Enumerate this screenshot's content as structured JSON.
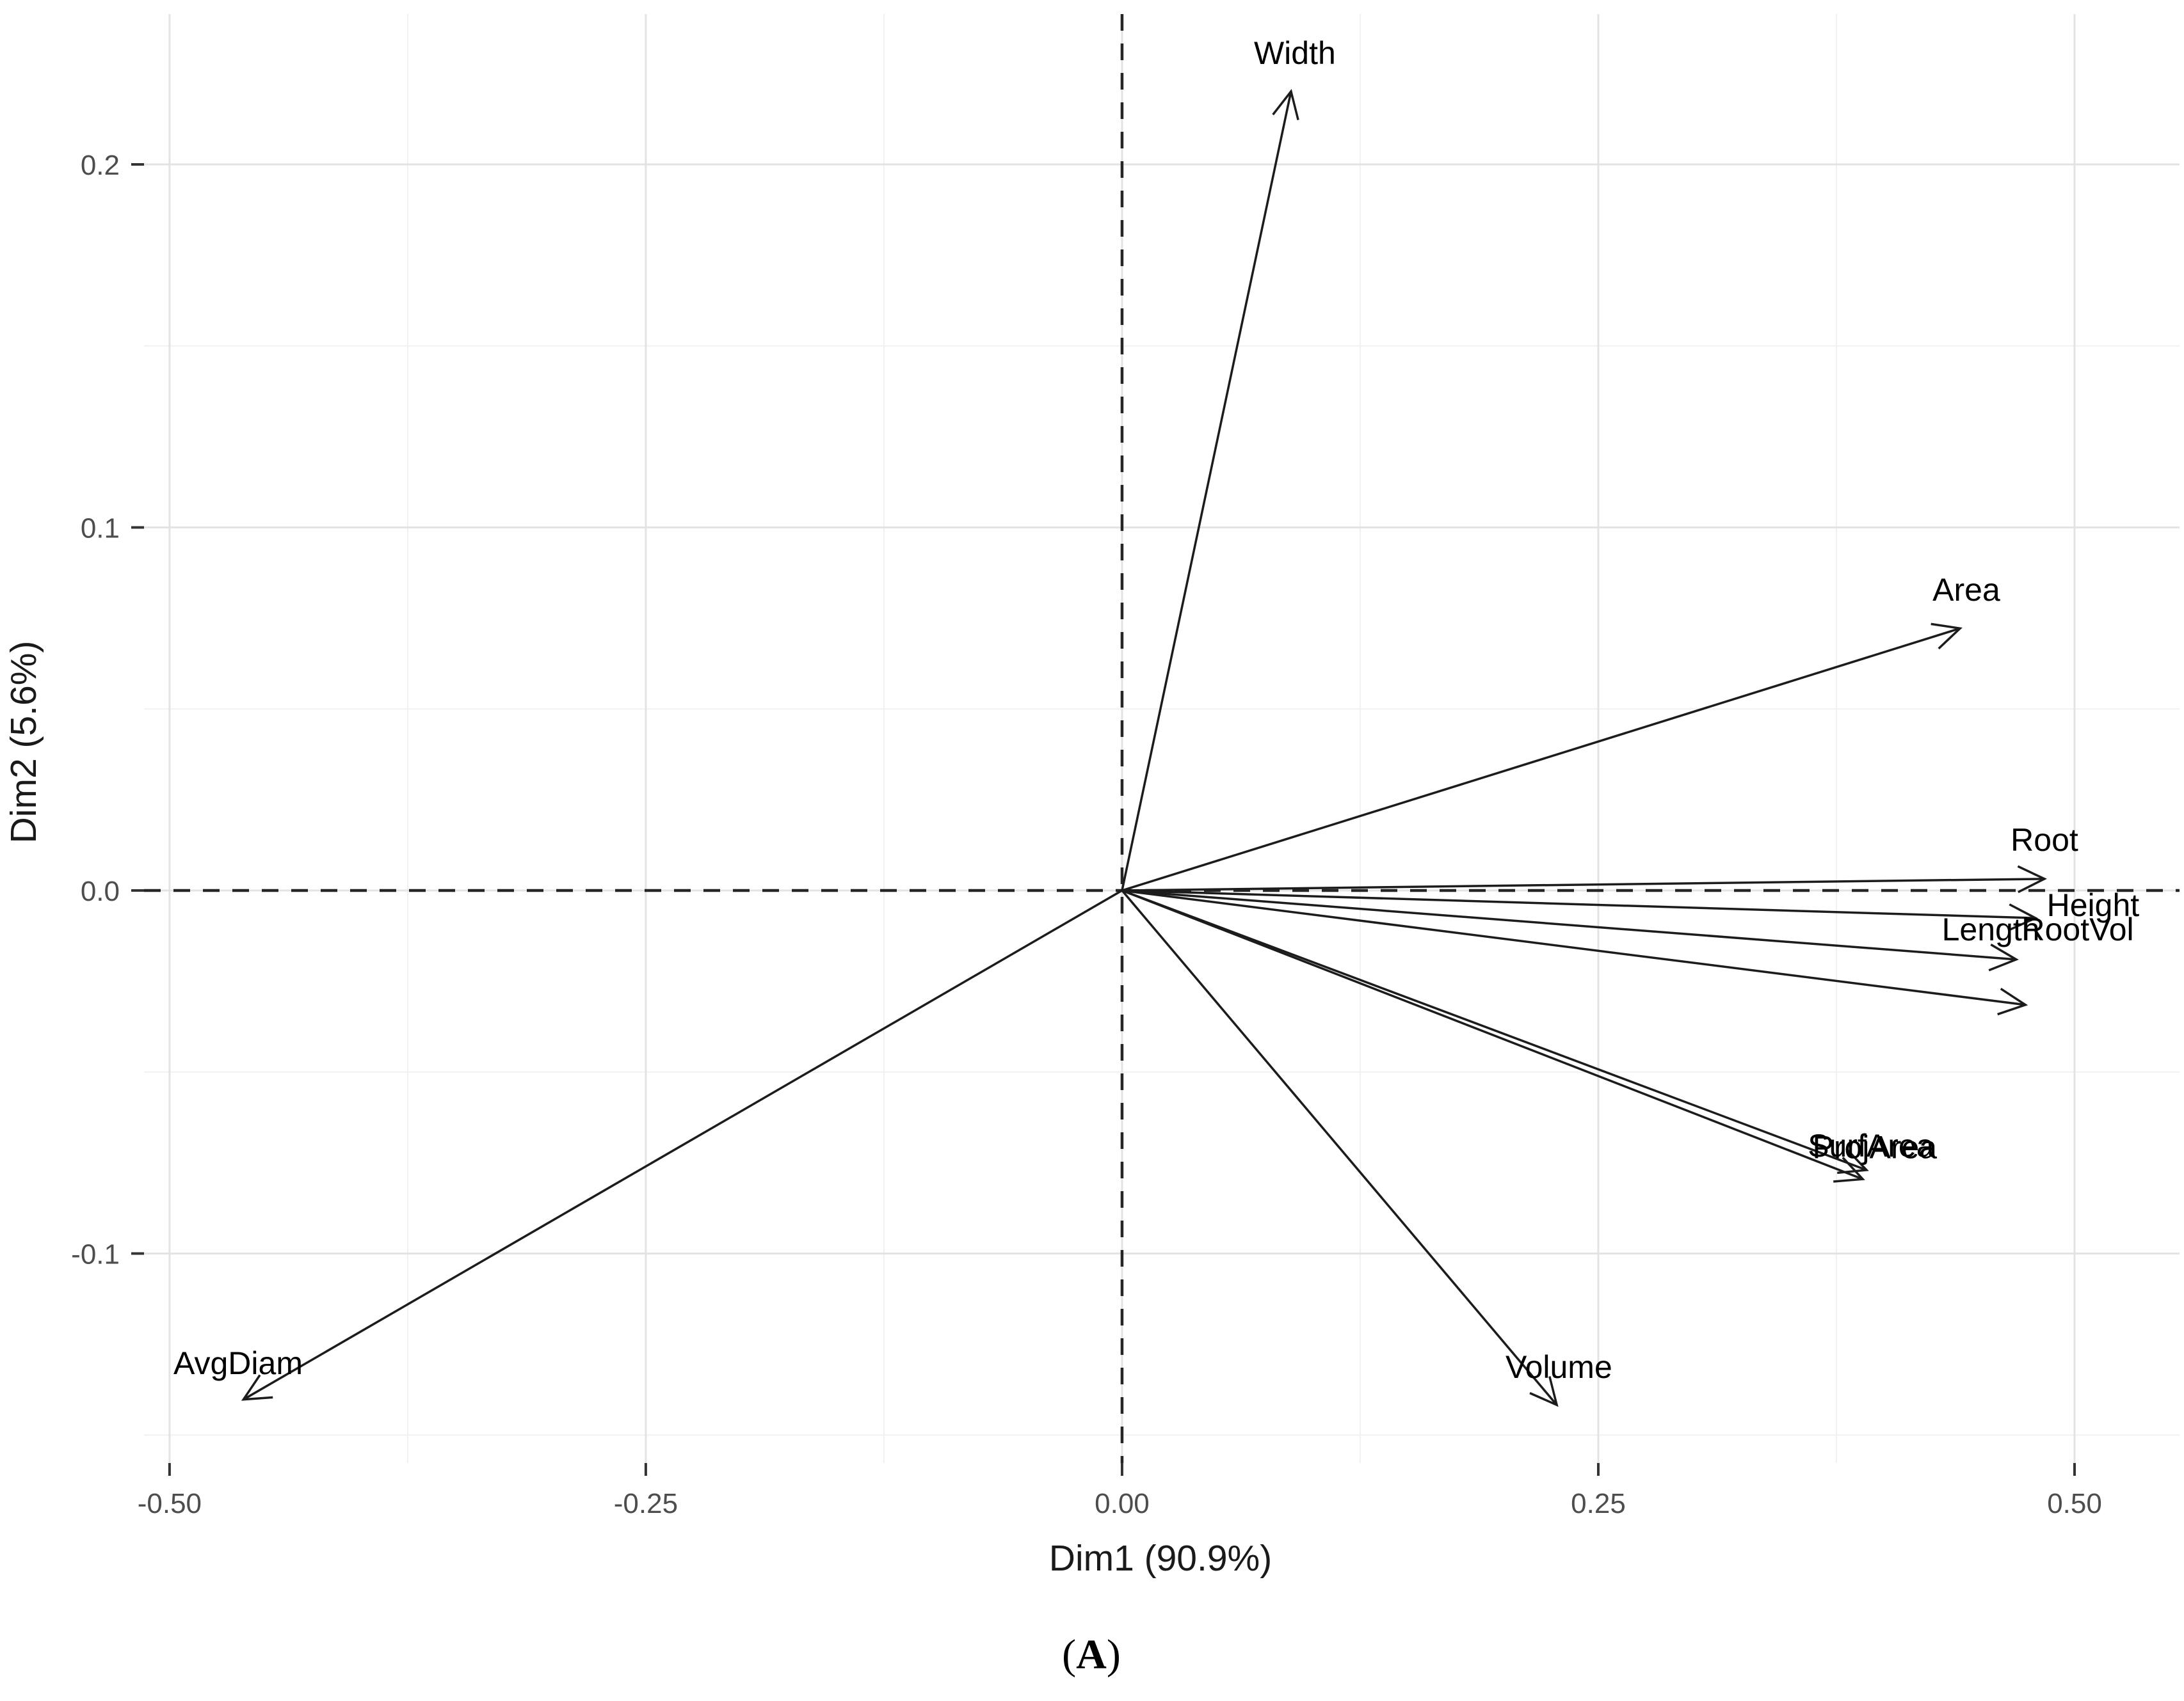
{
  "figure": {
    "caption_open": "(",
    "caption_letter": "A",
    "caption_close": ")"
  },
  "chart_data": {
    "type": "scatter",
    "subtype": "pca-variables-biplot",
    "xlabel": "Dim1 (90.9%)",
    "ylabel": "Dim2 (5.6%)",
    "xlim": [
      -0.5134,
      0.5551
    ],
    "ylim": [
      -0.1577,
      0.2414
    ],
    "x_major_ticks": [
      -0.5,
      -0.25,
      0.0,
      0.25,
      0.5
    ],
    "x_tick_labels": [
      "-0.50",
      "-0.25",
      "0.00",
      "0.25",
      "0.50"
    ],
    "x_minor_ticks": [
      -0.375,
      -0.125,
      0.125,
      0.375
    ],
    "y_major_ticks": [
      -0.1,
      0.0,
      0.1,
      0.2
    ],
    "y_tick_labels": [
      "-0.1",
      "0.0",
      "0.1",
      "0.2"
    ],
    "y_minor_ticks": [
      -0.15,
      -0.05,
      0.05,
      0.15
    ],
    "grid": true,
    "legend": false,
    "zero_lines": "dashed",
    "arrows": [
      {
        "name": "Width",
        "x": 0.0887,
        "y": 0.2201,
        "label_x": 0.0907,
        "label_y": 0.2308
      },
      {
        "name": "Area",
        "x": 0.4399,
        "y": 0.0722,
        "label_x": 0.4432,
        "label_y": 0.083
      },
      {
        "name": "Root",
        "x": 0.4842,
        "y": 0.0032,
        "label_x": 0.4842,
        "label_y": 0.0141
      },
      {
        "name": "Height",
        "x": 0.4795,
        "y": -0.0076,
        "label_x": 0.5097,
        "label_y": -0.0039
      },
      {
        "name": "Length",
        "x": 0.4694,
        "y": -0.019,
        "label_x": 0.456,
        "label_y": -0.0106
      },
      {
        "name": "RootVol",
        "x": 0.4742,
        "y": -0.0315,
        "label_x": 0.5017,
        "label_y": -0.0106
      },
      {
        "name": "SurfArea",
        "x": 0.3888,
        "y": -0.0795,
        "label_x": 0.3931,
        "label_y": -0.0701
      },
      {
        "name": "ProjArea",
        "x": 0.3908,
        "y": -0.077,
        "label_x": 0.3951,
        "label_y": -0.0706
      },
      {
        "name": "Volume",
        "x": 0.2282,
        "y": -0.1417,
        "label_x": 0.2293,
        "label_y": -0.1311
      },
      {
        "name": "AvgDiam",
        "x": -0.4612,
        "y": -0.1402,
        "label_x": -0.464,
        "label_y": -0.13
      }
    ],
    "colors": {
      "background": "#ffffff",
      "grid_major": "#e3e3e3",
      "grid_minor": "#f1f1f1",
      "dashed_line": "#262626",
      "arrow": "#1c1c1c",
      "variable_label": "#000000",
      "tick_mark": "#333333",
      "tick_label": "#4d4d4d",
      "axis_title": "#1a1a1a"
    }
  }
}
